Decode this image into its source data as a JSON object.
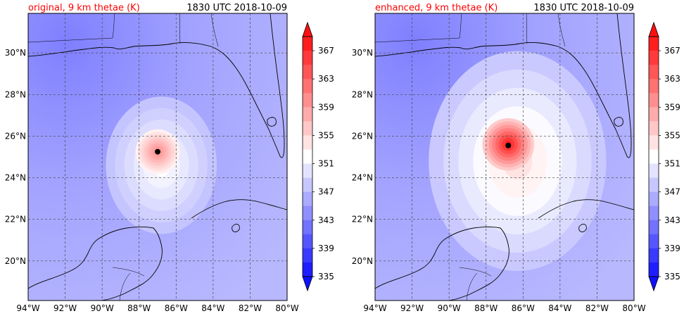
{
  "chart_data": [
    {
      "type": "heatmap",
      "title": "original, 9 km thetae (K)",
      "subtitle": "1830 UTC 2018-10-09",
      "x_ticks": [
        "94°W",
        "92°W",
        "90°W",
        "88°W",
        "86°W",
        "84°W",
        "82°W",
        "80°W"
      ],
      "x_values": [
        -94,
        -92,
        -90,
        -88,
        -86,
        -84,
        -82,
        -80
      ],
      "y_ticks": [
        "20°N",
        "22°N",
        "24°N",
        "26°N",
        "28°N",
        "30°N"
      ],
      "y_values": [
        20,
        22,
        24,
        26,
        28,
        30
      ],
      "xlim": [
        -94,
        -80
      ],
      "ylim": [
        18.1,
        31.9
      ],
      "grid": true,
      "colorbar": {
        "ticks": [
          "367",
          "363",
          "359",
          "355",
          "351",
          "347",
          "343",
          "339",
          "335"
        ],
        "range": [
          335,
          369
        ],
        "step": 2,
        "extend": "both"
      },
      "storm_center": [
        -87.0,
        25.25
      ],
      "core": {
        "lon": -87.0,
        "lat": 25.25,
        "peak": 360,
        "radius_deg": 1.2
      },
      "outer": {
        "lon": -86.8,
        "lat": 24.6,
        "value": 352,
        "radius_deg": 3.0
      }
    },
    {
      "type": "heatmap",
      "title": "enhanced, 9 km thetae (K)",
      "subtitle": "1830 UTC 2018-10-09",
      "x_ticks": [
        "94°W",
        "92°W",
        "90°W",
        "88°W",
        "86°W",
        "84°W",
        "82°W",
        "80°W"
      ],
      "x_values": [
        -94,
        -92,
        -90,
        -88,
        -86,
        -84,
        -82,
        -80
      ],
      "y_ticks": [
        "20°N",
        "22°N",
        "24°N",
        "26°N",
        "28°N",
        "30°N"
      ],
      "y_values": [
        20,
        22,
        24,
        26,
        28,
        30
      ],
      "xlim": [
        -94,
        -80
      ],
      "ylim": [
        18.1,
        31.9
      ],
      "grid": true,
      "colorbar": {
        "ticks": [
          "367",
          "363",
          "359",
          "355",
          "351",
          "347",
          "343",
          "339",
          "335"
        ],
        "range": [
          335,
          369
        ],
        "step": 2,
        "extend": "both"
      },
      "storm_center": [
        -86.8,
        25.55
      ],
      "core": {
        "lon": -86.8,
        "lat": 25.6,
        "peak": 368,
        "radius_deg": 1.4
      },
      "outer": {
        "lon": -86.3,
        "lat": 24.8,
        "value": 354,
        "radius_deg": 4.8
      }
    }
  ]
}
